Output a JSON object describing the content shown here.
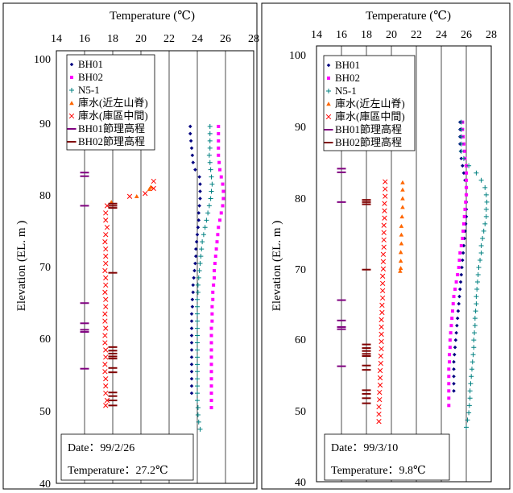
{
  "panels": [
    {
      "x_axis_title": "Temperature (℃)",
      "y_axis_title": "Elevation  (EL. m )",
      "x_ticks": [
        "14",
        "16",
        "18",
        "20",
        "22",
        "24",
        "26",
        "28"
      ],
      "y_ticks": [
        "40",
        "50",
        "60",
        "70",
        "80",
        "90",
        "100"
      ],
      "legend": [
        "BH01",
        "BH02",
        "N5-1",
        "庫水(近左山脊)",
        "庫水(庫區中間)",
        "BH01節理高程",
        "BH02節理高程"
      ],
      "date_text": "Date：99/2/26",
      "temp_text": "Temperature：27.2℃"
    },
    {
      "x_axis_title": "Temperature (℃)",
      "y_axis_title": "Elevation  (EL. m )",
      "x_ticks": [
        "14",
        "16",
        "18",
        "20",
        "22",
        "24",
        "26",
        "28"
      ],
      "y_ticks": [
        "40",
        "50",
        "60",
        "70",
        "80",
        "90",
        "100"
      ],
      "legend": [
        "BH01",
        "BH02",
        "N5-1",
        "庫水(近左山脊)",
        "庫水(庫區中間)",
        "BH01節理高程",
        "BH02節理高程"
      ],
      "date_text": "Date：99/3/10",
      "temp_text": "Temperature：9.8℃"
    }
  ],
  "chart_data": [
    {
      "type": "scatter",
      "x_axis": "Temperature (℃)",
      "y_axis": "Elevation (EL. m)",
      "xlim": [
        14,
        28
      ],
      "ylim": [
        40,
        100
      ],
      "grid": "vertical",
      "legend_position": "top-left",
      "date": "99/2/26",
      "air_temperature": "27.2℃",
      "series": [
        {
          "name": "BH01",
          "color": "#000080",
          "marker": "diamond",
          "x": [
            23.5,
            23.5,
            23.55,
            23.6,
            23.65,
            23.7,
            23.85,
            24.15,
            24.2,
            24.2,
            24.2,
            24.15,
            24.1,
            24.1,
            24.05,
            24.0,
            23.95,
            23.9,
            23.9,
            23.85,
            23.8,
            23.75,
            23.7,
            23.7,
            23.65,
            23.65,
            23.6,
            23.6,
            23.6,
            23.6,
            23.6,
            23.6,
            23.6,
            23.6,
            23.6,
            23.6,
            23.6,
            23.6
          ],
          "y": [
            89.5,
            88.5,
            87.5,
            86.5,
            85.5,
            84.5,
            83.5,
            82.5,
            81.5,
            80.5,
            79.5,
            78.5,
            77.5,
            76.5,
            75.5,
            74.5,
            73.5,
            72.5,
            71.5,
            70.5,
            69.5,
            68.5,
            67.5,
            66.5,
            65.5,
            64.5,
            63.5,
            62.5,
            61.5,
            60.5,
            59.5,
            58.5,
            57.5,
            56.5,
            55.5,
            54.5,
            53.5,
            52.5
          ]
        },
        {
          "name": "BH02",
          "color": "#ff00ff",
          "marker": "square",
          "x": [
            25.5,
            25.5,
            25.5,
            25.5,
            25.5,
            25.55,
            25.6,
            25.7,
            25.8,
            25.85,
            25.85,
            25.8,
            25.7,
            25.6,
            25.5,
            25.45,
            25.4,
            25.35,
            25.3,
            25.25,
            25.2,
            25.2,
            25.15,
            25.1,
            25.1,
            25.05,
            25.05,
            25.05,
            25.0,
            25.0,
            25.0,
            25.0,
            25.0,
            25.0,
            25.0,
            25.0,
            25.0,
            25.0,
            25.0,
            25.0
          ],
          "y": [
            89.5,
            88.5,
            87.5,
            86.5,
            85.5,
            84.5,
            83.5,
            82.5,
            81.5,
            80.5,
            79.5,
            78.5,
            77.5,
            76.5,
            75.5,
            74.5,
            73.5,
            72.5,
            71.5,
            70.5,
            69.5,
            68.5,
            67.5,
            66.5,
            65.5,
            64.5,
            63.5,
            62.5,
            61.5,
            60.5,
            59.5,
            58.5,
            57.5,
            56.5,
            55.5,
            54.5,
            53.5,
            52.5,
            51.5,
            50.5
          ]
        },
        {
          "name": "N5-1",
          "color": "#008080",
          "marker": "plus",
          "x": [
            24.9,
            24.9,
            24.9,
            24.9,
            24.85,
            24.9,
            24.95,
            25.0,
            25.05,
            25.0,
            24.95,
            24.85,
            24.75,
            24.65,
            24.55,
            24.45,
            24.35,
            24.3,
            24.25,
            24.2,
            24.15,
            24.1,
            24.05,
            24.05,
            24.0,
            24.0,
            24.0,
            24.0,
            24.0,
            24.0,
            24.0,
            24.0,
            24.0,
            24.0,
            24.0,
            24.0,
            24.0,
            24.0,
            24.0,
            24.05,
            24.05,
            24.1,
            24.2
          ],
          "y": [
            89.5,
            88.5,
            87.5,
            86.5,
            85.5,
            84.5,
            83.5,
            82.5,
            81.5,
            80.5,
            79.5,
            78.5,
            77.5,
            76.5,
            75.5,
            74.5,
            73.5,
            72.5,
            71.5,
            70.5,
            69.5,
            68.5,
            67.5,
            66.5,
            65.5,
            64.5,
            63.5,
            62.5,
            61.5,
            60.5,
            59.5,
            58.5,
            57.5,
            56.5,
            55.5,
            54.5,
            53.5,
            52.5,
            51.5,
            50.5,
            49.5,
            48.5,
            47.5
          ]
        },
        {
          "name": "庫水(近左山脊)",
          "color": "#ff6600",
          "marker": "triangle",
          "x": [
            17.9,
            19.7,
            20.6,
            20.7
          ],
          "y": [
            79.0,
            79.8,
            80.8,
            81.1
          ]
        },
        {
          "name": "庫水(庫區中間)",
          "color": "#ff0000",
          "marker": "x",
          "x": [
            17.6,
            17.5,
            17.5,
            17.6,
            17.5,
            17.45,
            17.5,
            17.5,
            17.5,
            17.45,
            17.5,
            17.5,
            17.45,
            17.5,
            17.5,
            17.45,
            17.45,
            17.5,
            17.45,
            17.45,
            17.5,
            17.5,
            17.45,
            17.45,
            17.5,
            17.5,
            17.5,
            17.6,
            17.5,
            19.2,
            20.3,
            20.9,
            20.9
          ],
          "y": [
            78.5,
            77.5,
            76.5,
            75.5,
            74.5,
            73.5,
            72.5,
            71.5,
            70.5,
            69.5,
            68.5,
            67.5,
            66.5,
            65.5,
            64.5,
            63.5,
            62.5,
            61.5,
            60.5,
            59.5,
            58.5,
            57.5,
            56.5,
            55.5,
            54.5,
            53.5,
            52.5,
            51.5,
            50.8,
            79.8,
            80.2,
            80.9,
            81.9
          ]
        },
        {
          "name": "BH01節理高程",
          "color": "#800080",
          "marker": "hline",
          "x": [
            16,
            16,
            16,
            16,
            16,
            16,
            16,
            16
          ],
          "y": [
            83.1,
            82.6,
            78.5,
            65.0,
            62.2,
            61.3,
            61.0,
            55.9
          ]
        },
        {
          "name": "BH02節理高程",
          "color": "#800000",
          "marker": "hline",
          "x": [
            18,
            18,
            18,
            18,
            18,
            18,
            18,
            18,
            18,
            18,
            18,
            18,
            18,
            18,
            18
          ],
          "y": [
            78.5,
            78.2,
            69.2,
            58.9,
            58.4,
            58.0,
            57.6,
            57.3,
            56.0,
            55.4,
            52.6,
            52.1,
            51.5,
            50.8,
            78.8
          ]
        }
      ]
    },
    {
      "type": "scatter",
      "x_axis": "Temperature (℃)",
      "y_axis": "Elevation (EL. m)",
      "xlim": [
        14,
        28
      ],
      "ylim": [
        40,
        100
      ],
      "grid": "vertical",
      "legend_position": "top-left",
      "date": "99/3/10",
      "air_temperature": "9.8℃",
      "series": [
        {
          "name": "BH01",
          "color": "#000080",
          "marker": "diamond",
          "x": [
            25.5,
            25.5,
            25.5,
            25.5,
            25.55,
            25.6,
            25.7,
            25.8,
            25.9,
            26.0,
            26.0,
            26.0,
            26.0,
            26.0,
            25.95,
            25.9,
            25.85,
            25.8,
            25.75,
            25.7,
            25.65,
            25.6,
            25.55,
            25.5,
            25.45,
            25.4,
            25.35,
            25.3,
            25.25,
            25.2,
            25.15,
            25.1,
            25.05,
            25.0,
            25.0,
            25.0,
            25.0,
            25.0
          ],
          "y": [
            89.5,
            88.5,
            87.5,
            86.5,
            85.5,
            84.5,
            83.5,
            82.5,
            81.5,
            80.5,
            79.5,
            78.5,
            77.5,
            76.5,
            75.5,
            74.5,
            73.5,
            72.5,
            71.5,
            70.5,
            69.5,
            68.5,
            67.5,
            66.5,
            65.5,
            64.5,
            63.5,
            62.5,
            61.5,
            60.5,
            59.5,
            58.5,
            57.5,
            56.5,
            55.5,
            54.5,
            53.5,
            52.5
          ]
        },
        {
          "name": "BH02",
          "color": "#ff00ff",
          "marker": "square",
          "x": [
            25.7,
            25.7,
            25.75,
            25.8,
            25.85,
            25.9,
            26.0,
            26.0,
            26.0,
            26.0,
            26.0,
            25.95,
            25.9,
            25.85,
            25.8,
            25.75,
            25.7,
            25.6,
            25.5,
            25.45,
            25.4,
            25.3,
            25.2,
            25.1,
            25.0,
            24.95,
            24.9,
            24.85,
            24.8,
            24.75,
            24.7,
            24.7,
            24.65,
            24.65,
            24.6,
            24.6,
            24.6,
            24.6,
            24.6,
            24.6
          ],
          "y": [
            89.5,
            88.5,
            87.5,
            86.5,
            85.5,
            84.5,
            83.5,
            82.5,
            81.5,
            80.5,
            79.5,
            78.5,
            77.5,
            76.5,
            75.5,
            74.5,
            73.5,
            72.5,
            71.5,
            70.5,
            69.5,
            68.5,
            67.5,
            66.5,
            65.5,
            64.5,
            63.5,
            62.5,
            61.5,
            60.5,
            59.5,
            58.5,
            57.5,
            56.5,
            55.5,
            54.5,
            53.5,
            52.5,
            51.5,
            50.5
          ]
        },
        {
          "name": "N5-1",
          "color": "#008080",
          "marker": "plus",
          "x": [
            25.6,
            25.6,
            25.6,
            25.6,
            25.6,
            25.8,
            26.2,
            26.8,
            27.2,
            27.5,
            27.6,
            27.65,
            27.6,
            27.6,
            27.5,
            27.4,
            27.3,
            27.2,
            27.2,
            27.1,
            27.0,
            26.95,
            26.9,
            26.85,
            26.8,
            26.8,
            26.75,
            26.7,
            26.7,
            26.65,
            26.6,
            26.6,
            26.55,
            26.5,
            26.45,
            26.4,
            26.35,
            26.3,
            26.3,
            26.25,
            26.2,
            26.1,
            26.0
          ],
          "y": [
            89.5,
            88.5,
            87.5,
            86.5,
            85.5,
            84.5,
            83.5,
            82.5,
            81.5,
            80.5,
            79.5,
            78.5,
            77.5,
            76.5,
            75.5,
            74.5,
            73.5,
            72.5,
            71.5,
            70.5,
            69.5,
            68.5,
            67.5,
            66.5,
            65.5,
            64.5,
            63.5,
            62.5,
            61.5,
            60.5,
            59.5,
            58.5,
            57.5,
            56.5,
            55.5,
            54.5,
            53.5,
            52.5,
            51.5,
            50.5,
            49.5,
            48.5,
            47.5
          ]
        },
        {
          "name": "庫水(近左山脊)",
          "color": "#ff6600",
          "marker": "triangle",
          "x": [
            20.9,
            20.9,
            20.9,
            20.9,
            20.85,
            20.8,
            20.8,
            20.8,
            20.75,
            20.75,
            20.75,
            20.7
          ],
          "y": [
            81.2,
            80.2,
            79.0,
            77.8,
            76.5,
            75.2,
            74.0,
            72.8,
            71.6,
            70.4,
            69.4,
            69.0
          ]
        },
        {
          "name": "庫水(庫區中間)",
          "color": "#ff0000",
          "marker": "x",
          "x": [
            19.5,
            19.5,
            19.5,
            19.45,
            19.45,
            19.45,
            19.4,
            19.4,
            19.4,
            19.4,
            19.35,
            19.35,
            19.35,
            19.3,
            19.3,
            19.3,
            19.3,
            19.25,
            19.25,
            19.2,
            19.2,
            19.2,
            19.2,
            19.2,
            19.15,
            19.15,
            19.1,
            19.1,
            19.1,
            19.05,
            19.05,
            19.0,
            19.0,
            19.0
          ],
          "y": [
            81.3,
            80.3,
            79.3,
            78.3,
            77.3,
            76.3,
            75.3,
            74.3,
            73.3,
            72.3,
            71.3,
            70.3,
            69.3,
            68.3,
            67.3,
            66.3,
            65.3,
            64.3,
            63.3,
            62.3,
            61.3,
            60.3,
            59.3,
            58.3,
            57.3,
            56.3,
            55.3,
            54.3,
            53.3,
            52.3,
            51.3,
            50.3,
            49.3,
            48.3
          ]
        },
        {
          "name": "BH01節理高程",
          "color": "#800080",
          "marker": "hline",
          "x": [
            16,
            16,
            16,
            16,
            16,
            16,
            16,
            16
          ],
          "y": [
            83.1,
            82.6,
            78.5,
            65.0,
            62.2,
            61.3,
            61.0,
            55.9
          ]
        },
        {
          "name": "BH02節理高程",
          "color": "#800000",
          "marker": "hline",
          "x": [
            18,
            18,
            18,
            18,
            18,
            18,
            18,
            18,
            18,
            18,
            18,
            18,
            18,
            18,
            18
          ],
          "y": [
            78.5,
            78.2,
            69.2,
            58.9,
            58.4,
            58.0,
            57.6,
            57.3,
            56.0,
            55.4,
            52.6,
            52.1,
            51.5,
            50.8,
            78.8
          ]
        }
      ]
    }
  ]
}
